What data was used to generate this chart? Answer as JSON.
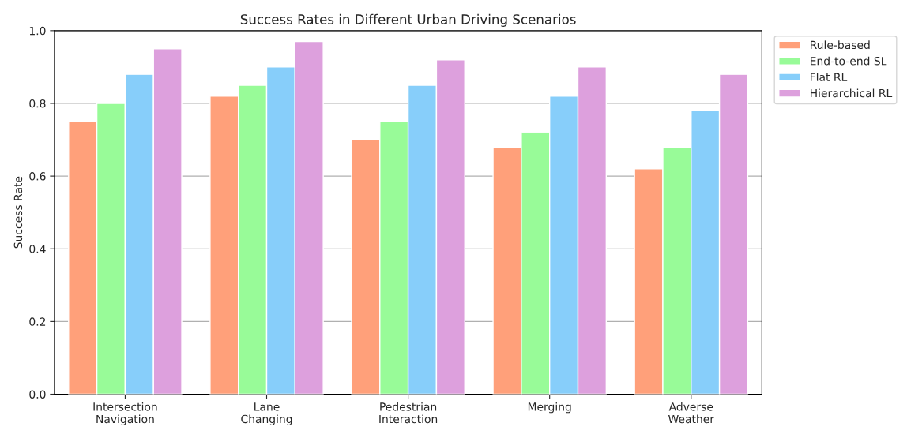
{
  "chart_data": {
    "type": "bar",
    "title": "Success Rates in Different Urban Driving Scenarios",
    "ylabel": "Success Rate",
    "categories": [
      "Intersection\nNavigation",
      "Lane\nChanging",
      "Pedestrian\nInteraction",
      "Merging",
      "Adverse\nWeather"
    ],
    "series": [
      {
        "name": "Rule-based",
        "color": "#ffa07a",
        "values": [
          0.75,
          0.82,
          0.7,
          0.68,
          0.62
        ]
      },
      {
        "name": "End-to-end SL",
        "color": "#98fb98",
        "values": [
          0.8,
          0.85,
          0.75,
          0.72,
          0.68
        ]
      },
      {
        "name": "Flat RL",
        "color": "#87cefa",
        "values": [
          0.88,
          0.9,
          0.85,
          0.82,
          0.78
        ]
      },
      {
        "name": "Hierarchical RL",
        "color": "#dda0dd",
        "values": [
          0.95,
          0.97,
          0.92,
          0.9,
          0.88
        ]
      }
    ],
    "ylim": [
      0.0,
      1.0
    ],
    "yticks": [
      {
        "value": 0,
        "label": "0.0"
      },
      0.2,
      0.4,
      0.6,
      0.8,
      {
        "value": 1,
        "label": "1.0"
      }
    ],
    "grid": "y",
    "legend": "right"
  }
}
